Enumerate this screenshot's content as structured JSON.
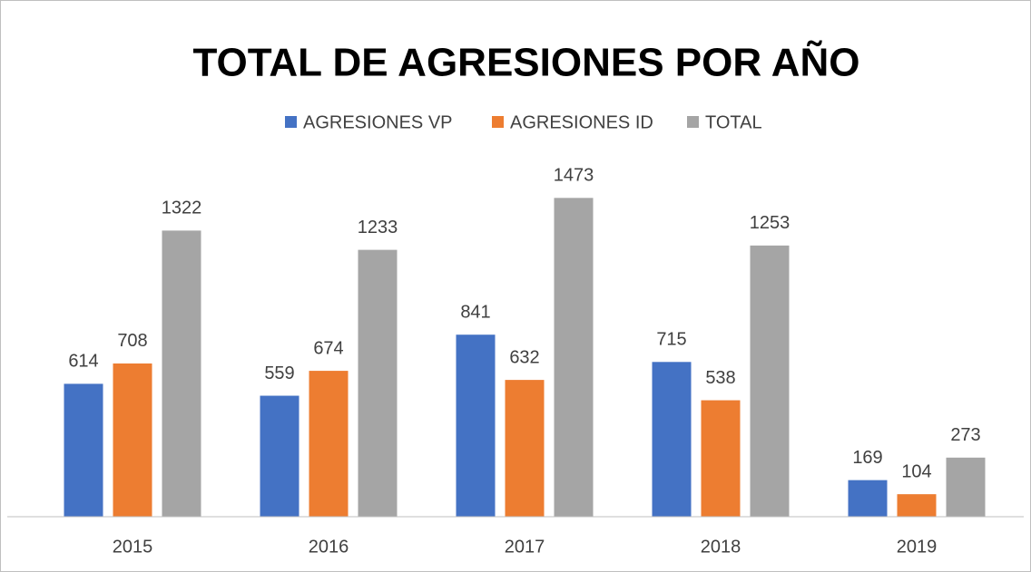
{
  "chart_data": {
    "type": "bar",
    "title": "TOTAL DE AGRESIONES POR AÑO",
    "categories": [
      "2015",
      "2016",
      "2017",
      "2018",
      "2019"
    ],
    "series": [
      {
        "name": "AGRESIONES VP",
        "color": "#4472c4",
        "values": [
          614,
          559,
          841,
          715,
          169
        ]
      },
      {
        "name": "AGRESIONES ID",
        "color": "#ed7d31",
        "values": [
          708,
          674,
          632,
          538,
          104
        ]
      },
      {
        "name": "TOTAL",
        "color": "#a5a5a5",
        "values": [
          1322,
          1233,
          1473,
          1253,
          273
        ]
      }
    ],
    "ylim": [
      0,
      1600
    ],
    "legend": "top"
  }
}
